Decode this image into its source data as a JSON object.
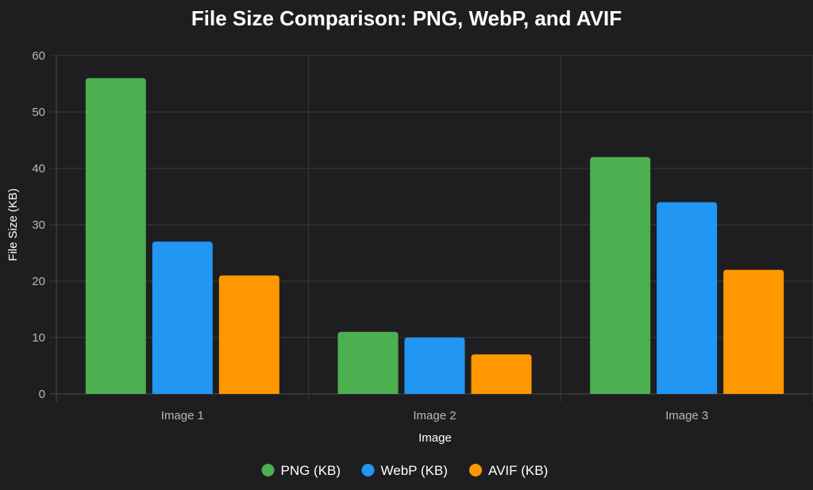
{
  "chart_data": {
    "type": "bar",
    "title": "File Size Comparison: PNG, WebP, and AVIF",
    "xlabel": "Image",
    "ylabel": "File Size (KB)",
    "categories": [
      "Image 1",
      "Image 2",
      "Image 3"
    ],
    "ylim": [
      0,
      60
    ],
    "yticks": [
      "0",
      "10",
      "20",
      "30",
      "40",
      "50",
      "60"
    ],
    "grid": true,
    "legend_position": "bottom",
    "series": [
      {
        "name": "PNG (KB)",
        "color": "#4caf50",
        "values": [
          56,
          11,
          42
        ]
      },
      {
        "name": "WebP (KB)",
        "color": "#2196f3",
        "values": [
          27,
          10,
          34
        ]
      },
      {
        "name": "AVIF (KB)",
        "color": "#ff9800",
        "values": [
          21,
          7,
          22
        ]
      }
    ]
  }
}
